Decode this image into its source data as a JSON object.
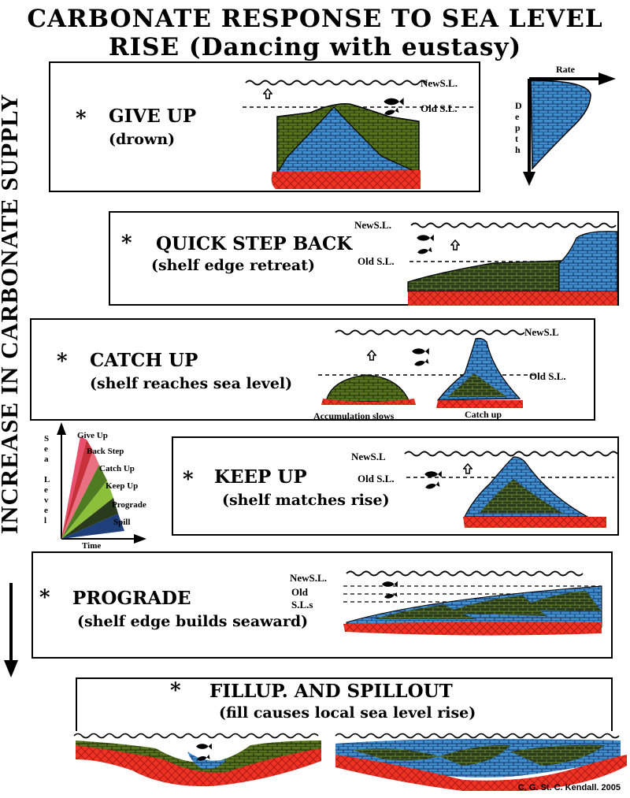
{
  "title": {
    "line1": "CARBONATE   RESPONSE TO SEA LEVEL",
    "line2": "RISE (Dancing with eustasy)"
  },
  "side_label": "INCREASE IN CARBONATE SUPPLY",
  "panels": {
    "give_up": {
      "star": "*",
      "title": "GIVE UP",
      "subtitle": "(drown)",
      "new_sl": "NewS.L.",
      "old_sl": "Old  S.L."
    },
    "quick_step_back": {
      "star": "*",
      "title": "QUICK STEP BACK",
      "subtitle": "(shelf edge retreat)",
      "new_sl": "NewS.L.",
      "old_sl": "Old  S.L."
    },
    "catch_up": {
      "star": "*",
      "title": "CATCH UP",
      "subtitle": "(shelf reaches sea level)",
      "new_sl": "NewS.L",
      "old_sl": "Old  S.L.",
      "left_caption": "Accumulation  slows",
      "right_caption": "Catch  up"
    },
    "keep_up": {
      "star": "*",
      "title": "KEEP UP",
      "subtitle": "(shelf matches rise)",
      "new_sl": "NewS.L",
      "old_sl": "Old  S.L."
    },
    "prograde": {
      "star": "*",
      "title": "PROGRADE",
      "subtitle": "(shelf edge builds seaward)",
      "new_sl": "NewS.L.",
      "old_sl_line1": "Old",
      "old_sl_line2": "S.L.s"
    },
    "fillup": {
      "star": "*",
      "title": "FILLUP. AND SPILLOUT",
      "subtitle": "(fill causes local sea level rise)"
    }
  },
  "rate_depth": {
    "x_label": "Rate",
    "y_label_letters": [
      "D",
      "e",
      "p",
      "t",
      "h"
    ]
  },
  "fan_chart": {
    "y_label_letters": [
      "S",
      "e",
      "a",
      "",
      "L",
      "e",
      "v",
      "e",
      "l"
    ],
    "x_label": "Time",
    "entries": [
      {
        "label": "Give  Up",
        "color": "#e8506e"
      },
      {
        "label": "Back  Step",
        "color": "#c8303a"
      },
      {
        "label": "Catch  Up",
        "color": "#e87080"
      },
      {
        "label": "Keep  Up",
        "color": "#4e7a22"
      },
      {
        "label": "Prograde",
        "color": "#8cbf3a"
      },
      {
        "label": "Spill",
        "color": "#1e3f7a"
      }
    ]
  },
  "credit": "C. G. St. C. Kendall. 2005",
  "colors": {
    "blue": "#3f8fd0",
    "green": "#55731c",
    "darkgreen": "#26381a",
    "red": "#ee3224"
  }
}
